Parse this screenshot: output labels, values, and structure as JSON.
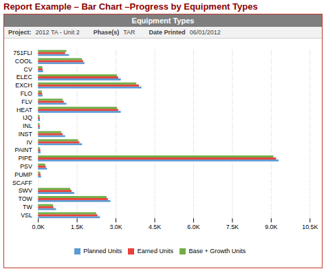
{
  "chart_data": {
    "type": "bar",
    "orientation": "horizontal",
    "title": "Report Example – Bar Chart –Progress by Equipment Types",
    "subtitle": "Equipment Types",
    "annotations": [
      "Project:",
      "2012 TA - Unit 2",
      "Phase(s)",
      "TAR",
      "Date Printed",
      "06/01/2012"
    ],
    "categories": [
      "751FLI",
      "COOL",
      "CV",
      "ELEC",
      "EXCH",
      "FLO",
      "FLV",
      "HEAT",
      "IJQ",
      "INL",
      "INST",
      "IV",
      "PAINT",
      "PIPE",
      "PSV",
      "PUMP",
      "SCAFF",
      "SWV",
      "TOW",
      "TW",
      "VSL"
    ],
    "series": [
      {
        "name": "Planned Units",
        "color": "#5b9bd5",
        "values": [
          1200,
          1800,
          200,
          3200,
          4000,
          180,
          1100,
          3200,
          80,
          80,
          1050,
          1700,
          100,
          9300,
          350,
          120,
          0,
          1400,
          2800,
          700,
          2400
        ]
      },
      {
        "name": "Earned Units",
        "color": "#e8413a",
        "values": [
          1050,
          1750,
          180,
          3100,
          3900,
          160,
          1000,
          3100,
          70,
          70,
          950,
          1600,
          90,
          9200,
          300,
          100,
          0,
          1300,
          2700,
          600,
          2300
        ]
      },
      {
        "name": "Base + Growth Units",
        "color": "#70ad47",
        "values": [
          1100,
          1700,
          170,
          3050,
          3800,
          150,
          950,
          3050,
          60,
          60,
          900,
          1550,
          80,
          9100,
          280,
          90,
          0,
          1250,
          2650,
          580,
          2250
        ]
      }
    ],
    "xlim": [
      0,
      10500
    ],
    "xticks": [
      {
        "value": 0,
        "label": "0.0K"
      },
      {
        "value": 1500,
        "label": "1.5K"
      },
      {
        "value": 3000,
        "label": "3.0K"
      },
      {
        "value": 4500,
        "label": "4.5K"
      },
      {
        "value": 6000,
        "label": "6.0K"
      },
      {
        "value": 7500,
        "label": "7.5K"
      },
      {
        "value": 9000,
        "label": "9.0K"
      },
      {
        "value": 10500,
        "label": "10.5K"
      }
    ],
    "grid": true,
    "legend": "bottom"
  }
}
